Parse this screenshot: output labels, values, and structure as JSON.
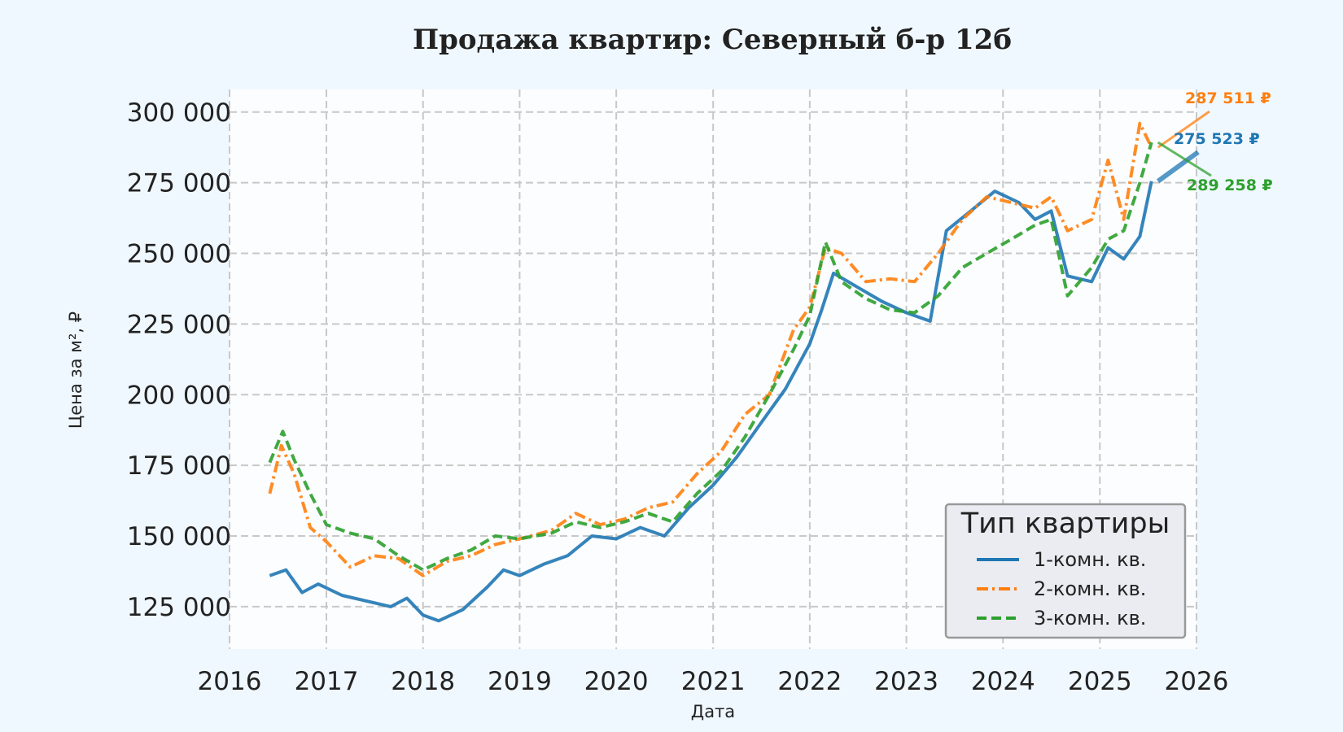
{
  "chart_data": {
    "type": "line",
    "title": "Продажа квартир: Северный б-р 12б",
    "xlabel": "Дата",
    "ylabel": "Цена за м², ₽",
    "xlim": [
      "2016-01-01",
      "2026-01-01"
    ],
    "ylim": [
      110000,
      308000
    ],
    "x_ticks": [
      "2016",
      "2017",
      "2018",
      "2019",
      "2020",
      "2021",
      "2022",
      "2023",
      "2024",
      "2025",
      "2026"
    ],
    "y_ticks": [
      "125 000",
      "150 000",
      "175 000",
      "200 000",
      "225 000",
      "250 000",
      "275 000",
      "300 000"
    ],
    "y_tick_values": [
      125000,
      150000,
      175000,
      200000,
      225000,
      250000,
      275000,
      300000
    ],
    "grid": true,
    "legend": {
      "title": "Тип квартиры",
      "placement": "lower-right"
    },
    "series": [
      {
        "name": "1-комн. кв.",
        "color": "#1f77b4",
        "dash": "solid",
        "points": [
          [
            "2016-06-01",
            136000
          ],
          [
            "2016-08-01",
            138000
          ],
          [
            "2016-10-01",
            130000
          ],
          [
            "2016-12-01",
            133000
          ],
          [
            "2017-03-01",
            129000
          ],
          [
            "2017-06-01",
            127000
          ],
          [
            "2017-09-01",
            125000
          ],
          [
            "2017-11-01",
            128000
          ],
          [
            "2018-01-01",
            122000
          ],
          [
            "2018-03-01",
            120000
          ],
          [
            "2018-06-01",
            124000
          ],
          [
            "2018-09-01",
            132000
          ],
          [
            "2018-11-01",
            138000
          ],
          [
            "2019-01-01",
            136000
          ],
          [
            "2019-04-01",
            140000
          ],
          [
            "2019-07-01",
            143000
          ],
          [
            "2019-10-01",
            150000
          ],
          [
            "2020-01-01",
            149000
          ],
          [
            "2020-04-01",
            153000
          ],
          [
            "2020-07-01",
            150000
          ],
          [
            "2020-10-01",
            160000
          ],
          [
            "2021-01-01",
            168000
          ],
          [
            "2021-04-01",
            178000
          ],
          [
            "2021-07-01",
            190000
          ],
          [
            "2021-10-01",
            202000
          ],
          [
            "2022-01-01",
            218000
          ],
          [
            "2022-02-15",
            230000
          ],
          [
            "2022-04-01",
            243000
          ],
          [
            "2022-07-01",
            238000
          ],
          [
            "2022-10-01",
            233000
          ],
          [
            "2023-01-01",
            229000
          ],
          [
            "2023-04-01",
            226000
          ],
          [
            "2023-06-01",
            258000
          ],
          [
            "2023-09-01",
            265000
          ],
          [
            "2023-12-01",
            272000
          ],
          [
            "2024-03-01",
            268000
          ],
          [
            "2024-05-01",
            262000
          ],
          [
            "2024-07-01",
            265000
          ],
          [
            "2024-09-01",
            242000
          ],
          [
            "2024-12-01",
            240000
          ],
          [
            "2025-02-01",
            252000
          ],
          [
            "2025-04-01",
            248000
          ],
          [
            "2025-06-01",
            256000
          ],
          [
            "2025-07-15",
            275523
          ]
        ]
      },
      {
        "name": "2-комн. кв.",
        "color": "#ff7f0e",
        "dash": "dashdot",
        "points": [
          [
            "2016-06-01",
            165000
          ],
          [
            "2016-07-15",
            182000
          ],
          [
            "2016-09-01",
            172000
          ],
          [
            "2016-11-01",
            153000
          ],
          [
            "2017-01-01",
            148000
          ],
          [
            "2017-04-01",
            139000
          ],
          [
            "2017-07-01",
            143000
          ],
          [
            "2017-10-01",
            142000
          ],
          [
            "2018-01-01",
            136000
          ],
          [
            "2018-04-01",
            141000
          ],
          [
            "2018-07-01",
            143000
          ],
          [
            "2018-10-01",
            147000
          ],
          [
            "2019-01-01",
            149000
          ],
          [
            "2019-05-01",
            152000
          ],
          [
            "2019-08-01",
            158000
          ],
          [
            "2019-11-01",
            154000
          ],
          [
            "2020-02-01",
            156000
          ],
          [
            "2020-05-01",
            160000
          ],
          [
            "2020-08-01",
            162000
          ],
          [
            "2020-11-01",
            172000
          ],
          [
            "2021-02-01",
            180000
          ],
          [
            "2021-05-01",
            193000
          ],
          [
            "2021-08-01",
            200000
          ],
          [
            "2021-11-01",
            223000
          ],
          [
            "2022-01-01",
            231000
          ],
          [
            "2022-03-01",
            252000
          ],
          [
            "2022-05-01",
            250000
          ],
          [
            "2022-08-01",
            240000
          ],
          [
            "2022-11-01",
            241000
          ],
          [
            "2023-02-01",
            240000
          ],
          [
            "2023-05-01",
            250000
          ],
          [
            "2023-08-01",
            262000
          ],
          [
            "2023-11-01",
            270000
          ],
          [
            "2024-02-01",
            268000
          ],
          [
            "2024-05-01",
            266000
          ],
          [
            "2024-07-01",
            270000
          ],
          [
            "2024-09-01",
            258000
          ],
          [
            "2024-12-01",
            262000
          ],
          [
            "2025-02-01",
            283000
          ],
          [
            "2025-04-01",
            262000
          ],
          [
            "2025-06-01",
            296000
          ],
          [
            "2025-07-15",
            287511
          ]
        ]
      },
      {
        "name": "3-комн. кв.",
        "color": "#2ca02c",
        "dash": "dashed",
        "points": [
          [
            "2016-06-01",
            176000
          ],
          [
            "2016-07-20",
            187000
          ],
          [
            "2016-09-01",
            177000
          ],
          [
            "2016-11-01",
            165000
          ],
          [
            "2017-01-01",
            154000
          ],
          [
            "2017-04-01",
            151000
          ],
          [
            "2017-07-01",
            149000
          ],
          [
            "2017-10-01",
            143000
          ],
          [
            "2018-01-01",
            138000
          ],
          [
            "2018-04-01",
            142000
          ],
          [
            "2018-07-01",
            145000
          ],
          [
            "2018-10-01",
            150000
          ],
          [
            "2019-01-01",
            149000
          ],
          [
            "2019-05-01",
            151000
          ],
          [
            "2019-08-01",
            155000
          ],
          [
            "2019-11-01",
            153000
          ],
          [
            "2020-02-01",
            155000
          ],
          [
            "2020-05-01",
            158000
          ],
          [
            "2020-08-01",
            155000
          ],
          [
            "2020-11-01",
            165000
          ],
          [
            "2021-02-01",
            173000
          ],
          [
            "2021-05-01",
            185000
          ],
          [
            "2021-08-01",
            200000
          ],
          [
            "2021-11-01",
            216000
          ],
          [
            "2022-01-01",
            228000
          ],
          [
            "2022-03-01",
            254000
          ],
          [
            "2022-05-01",
            240000
          ],
          [
            "2022-08-01",
            234000
          ],
          [
            "2022-11-01",
            230000
          ],
          [
            "2023-02-01",
            229000
          ],
          [
            "2023-05-01",
            235000
          ],
          [
            "2023-08-01",
            245000
          ],
          [
            "2023-11-01",
            250000
          ],
          [
            "2024-02-01",
            255000
          ],
          [
            "2024-05-01",
            260000
          ],
          [
            "2024-07-01",
            262000
          ],
          [
            "2024-09-01",
            235000
          ],
          [
            "2024-12-01",
            245000
          ],
          [
            "2025-02-01",
            255000
          ],
          [
            "2025-04-01",
            258000
          ],
          [
            "2025-06-01",
            275000
          ],
          [
            "2025-07-15",
            289258
          ]
        ]
      }
    ],
    "annotations": [
      {
        "text": "287 511 ₽",
        "series": "2-комн. кв.",
        "value": 287511
      },
      {
        "text": "275 523 ₽",
        "series": "1-комн. кв.",
        "value": 275523
      },
      {
        "text": "289 258 ₽",
        "series": "3-комн. кв.",
        "value": 289258
      }
    ]
  }
}
